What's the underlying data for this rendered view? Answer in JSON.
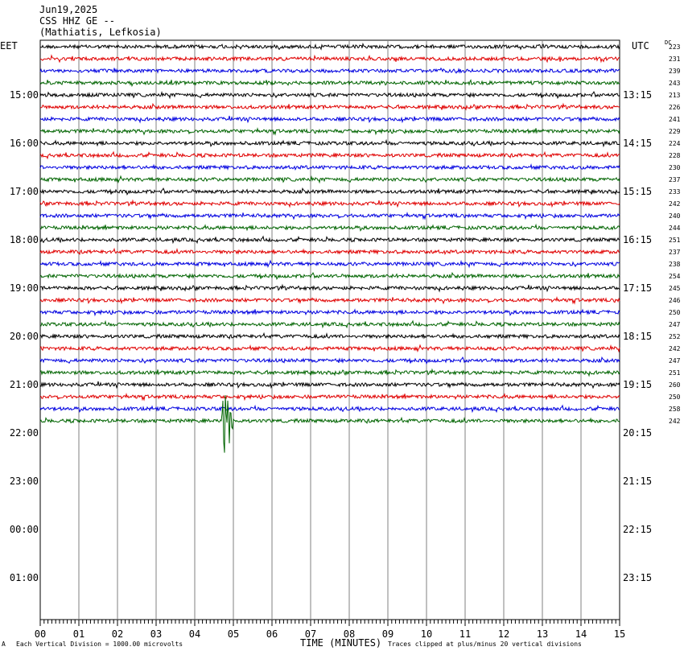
{
  "header": {
    "date": "Jun19,2025",
    "station": "CSS HHZ GE --",
    "location": "(Mathiatis, Lefkosia)"
  },
  "left_timezone": "EET",
  "right_timezone": "UTC",
  "dc_label": "DC",
  "footer": {
    "left_mark": "A",
    "scale_note": "Each Vertical Division = 1000.00 microvolts",
    "axis_title": "TIME (MINUTES)",
    "clip_note": "Traces clipped at plus/minus 20 vertical divisions"
  },
  "chart_data": {
    "type": "line",
    "subtype": "helicorder",
    "xlabel": "TIME (MINUTES)",
    "xlim": [
      0,
      15
    ],
    "x_ticks": [
      "00",
      "01",
      "02",
      "03",
      "04",
      "05",
      "06",
      "07",
      "08",
      "09",
      "10",
      "11",
      "12",
      "13",
      "14",
      "15"
    ],
    "minutes_per_line": 15,
    "total_lines": 48,
    "recorded_lines": 32,
    "trace_colors": [
      "#000000",
      "#e00000",
      "#0000e0",
      "#006400"
    ],
    "left_hour_labels": [
      "15:00",
      "16:00",
      "17:00",
      "18:00",
      "19:00",
      "20:00",
      "21:00",
      "22:00",
      "23:00",
      "00:00",
      "01:00"
    ],
    "right_hour_labels": [
      "13:15",
      "14:15",
      "15:15",
      "16:15",
      "17:15",
      "18:15",
      "19:15",
      "20:15",
      "21:15",
      "22:15",
      "23:15"
    ],
    "dc_offsets": [
      223,
      231,
      239,
      243,
      213,
      226,
      241,
      229,
      224,
      228,
      230,
      237,
      233,
      242,
      240,
      244,
      251,
      237,
      238,
      254,
      245,
      246,
      250,
      247,
      252,
      242,
      247,
      251,
      260,
      250,
      258,
      242
    ],
    "events": [
      {
        "line": 31,
        "minute_start": 4.7,
        "minute_end": 5.0,
        "description_amplitude_divisions": 4
      }
    ]
  }
}
